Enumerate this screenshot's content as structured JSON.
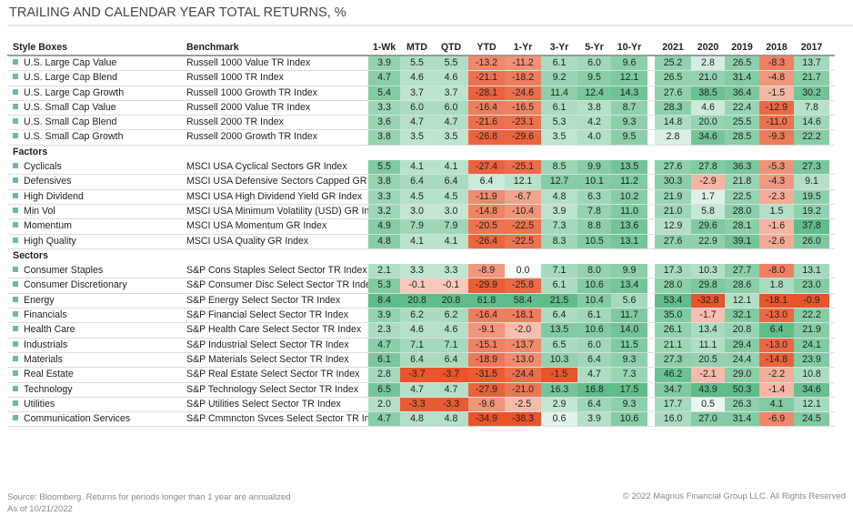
{
  "title": "TRAILING AND CALENDAR YEAR TOTAL RETURNS, %",
  "colors": {
    "positive": "#5fbd8a",
    "negative": "#e9542a",
    "marker": "#6bb8b0"
  },
  "columns": {
    "label": "Style Boxes",
    "benchmark": "Benchmark",
    "periods": [
      "1-Wk",
      "MTD",
      "QTD",
      "YTD",
      "1-Yr",
      "3-Yr",
      "5-Yr",
      "10-Yr",
      "2021",
      "2020",
      "2019",
      "2018",
      "2017"
    ]
  },
  "groups": [
    {
      "heading": "",
      "rows": [
        {
          "name": "U.S. Large Cap Value",
          "benchmark": "Russell 1000 Value TR Index",
          "values": [
            3.9,
            5.5,
            5.5,
            -13.2,
            -11.2,
            6.1,
            6.0,
            9.6,
            25.2,
            2.8,
            26.5,
            -8.3,
            13.7
          ]
        },
        {
          "name": "U.S. Large Cap Blend",
          "benchmark": "Russell 1000 TR Index",
          "values": [
            4.7,
            4.6,
            4.6,
            -21.1,
            -18.2,
            9.2,
            9.5,
            12.1,
            26.5,
            21.0,
            31.4,
            -4.8,
            21.7
          ]
        },
        {
          "name": "U.S. Large Cap Growth",
          "benchmark": "Russell 1000 Growth TR Index",
          "values": [
            5.4,
            3.7,
            3.7,
            -28.1,
            -24.6,
            11.4,
            12.4,
            14.3,
            27.6,
            38.5,
            36.4,
            -1.5,
            30.2
          ]
        },
        {
          "name": "U.S. Small Cap Value",
          "benchmark": "Russell 2000 Value TR Index",
          "values": [
            3.3,
            6.0,
            6.0,
            -16.4,
            -16.5,
            6.1,
            3.8,
            8.7,
            28.3,
            4.6,
            22.4,
            -12.9,
            7.8
          ]
        },
        {
          "name": "U.S. Small Cap Blend",
          "benchmark": "Russell 2000 TR Index",
          "values": [
            3.6,
            4.7,
            4.7,
            -21.6,
            -23.1,
            5.3,
            4.2,
            9.3,
            14.8,
            20.0,
            25.5,
            -11.0,
            14.6
          ]
        },
        {
          "name": "U.S. Small Cap Growth",
          "benchmark": "Russell 2000 Growth TR Index",
          "values": [
            3.8,
            3.5,
            3.5,
            -26.8,
            -29.6,
            3.5,
            4.0,
            9.5,
            2.8,
            34.6,
            28.5,
            -9.3,
            22.2
          ]
        }
      ]
    },
    {
      "heading": "Factors",
      "rows": [
        {
          "name": "Cyclicals",
          "benchmark": "MSCI USA Cyclical Sectors GR Index",
          "values": [
            5.5,
            4.1,
            4.1,
            -27.4,
            -25.1,
            8.5,
            9.9,
            13.5,
            27.6,
            27.8,
            36.3,
            -5.3,
            27.3
          ]
        },
        {
          "name": "Defensives",
          "benchmark": "MSCI USA Defensive Sectors Capped GR Inde",
          "values": [
            3.8,
            6.4,
            6.4,
            6.4,
            12.1,
            12.7,
            10.1,
            11.2,
            30.3,
            -2.9,
            21.8,
            -4.3,
            9.1
          ]
        },
        {
          "name": "High Dividend",
          "benchmark": "MSCI USA High Dividend Yield GR Index",
          "values": [
            3.3,
            4.5,
            4.5,
            -11.9,
            -6.7,
            4.8,
            6.3,
            10.2,
            21.9,
            1.7,
            22.5,
            -2.3,
            19.5
          ]
        },
        {
          "name": "Min Vol",
          "benchmark": "MSCI USA Minimum Volatility (USD) GR Inde",
          "values": [
            3.2,
            3.0,
            3.0,
            -14.8,
            -10.4,
            3.9,
            7.8,
            11.0,
            21.0,
            5.8,
            28.0,
            1.5,
            19.2
          ]
        },
        {
          "name": "Momentum",
          "benchmark": "MSCI USA Momentum GR Index",
          "values": [
            4.9,
            7.9,
            7.9,
            -20.5,
            -22.5,
            7.3,
            8.8,
            13.6,
            12.9,
            29.6,
            28.1,
            -1.6,
            37.8
          ]
        },
        {
          "name": "High Quality",
          "benchmark": "MSCI USA Quality GR Index",
          "values": [
            4.8,
            4.1,
            4.1,
            -26.4,
            -22.5,
            8.3,
            10.5,
            13.1,
            27.6,
            22.9,
            39.1,
            -2.6,
            26.0
          ]
        }
      ]
    },
    {
      "heading": "Sectors",
      "rows": [
        {
          "name": "Consumer Staples",
          "benchmark": "S&P Cons Staples Select Sector TR Index",
          "values": [
            2.1,
            3.3,
            3.3,
            -8.9,
            0.0,
            7.1,
            8.0,
            9.9,
            17.3,
            10.3,
            27.7,
            -8.0,
            13.1
          ]
        },
        {
          "name": "Consumer Discretionary",
          "benchmark": "S&P Consumer Disc Select Sector TR Index",
          "values": [
            5.3,
            -0.1,
            -0.1,
            -29.9,
            -25.8,
            6.1,
            10.6,
            13.4,
            28.0,
            29.8,
            28.6,
            1.8,
            23.0
          ]
        },
        {
          "name": "Energy",
          "benchmark": "S&P Energy Select Sector TR Index",
          "values": [
            8.4,
            20.8,
            20.8,
            61.8,
            58.4,
            21.5,
            10.4,
            5.6,
            53.4,
            -32.8,
            12.1,
            -18.1,
            -0.9
          ]
        },
        {
          "name": "Financials",
          "benchmark": "S&P Financial Select Sector TR Index",
          "values": [
            3.9,
            6.2,
            6.2,
            -16.4,
            -18.1,
            6.4,
            6.1,
            11.7,
            35.0,
            -1.7,
            32.1,
            -13.0,
            22.2
          ]
        },
        {
          "name": "Health Care",
          "benchmark": "S&P Health Care Select Sector TR Index",
          "values": [
            2.3,
            4.6,
            4.6,
            -9.1,
            -2.0,
            13.5,
            10.6,
            14.0,
            26.1,
            13.4,
            20.8,
            6.4,
            21.9
          ]
        },
        {
          "name": "Industrials",
          "benchmark": "S&P Industrial Select Sector TR Index",
          "values": [
            4.7,
            7.1,
            7.1,
            -15.1,
            -13.7,
            6.5,
            6.0,
            11.5,
            21.1,
            11.1,
            29.4,
            -13.0,
            24.1
          ]
        },
        {
          "name": "Materials",
          "benchmark": "S&P Materials Select Sector TR Index",
          "values": [
            6.1,
            6.4,
            6.4,
            -18.9,
            -13.0,
            10.3,
            6.4,
            9.3,
            27.3,
            20.5,
            24.4,
            -14.8,
            23.9
          ]
        },
        {
          "name": "Real Estate",
          "benchmark": "S&P Real Estate Select Sector TR Index",
          "values": [
            2.8,
            -3.7,
            -3.7,
            -31.5,
            -24.4,
            -1.5,
            4.7,
            7.3,
            46.2,
            -2.1,
            29.0,
            -2.2,
            10.8
          ]
        },
        {
          "name": "Technology",
          "benchmark": "S&P Technology Select Sector TR Index",
          "values": [
            6.5,
            4.7,
            4.7,
            -27.9,
            -21.0,
            16.3,
            16.8,
            17.5,
            34.7,
            43.9,
            50.3,
            -1.4,
            34.6
          ]
        },
        {
          "name": "Utilities",
          "benchmark": "S&P Utilities Select Sector TR Index",
          "values": [
            2.0,
            -3.3,
            -3.3,
            -9.6,
            -2.5,
            2.9,
            6.4,
            9.3,
            17.7,
            0.5,
            26.3,
            4.1,
            12.1
          ]
        },
        {
          "name": "Communication Services",
          "benchmark": "S&P Cmmncton Svces Select Sector TR Index",
          "values": [
            4.7,
            4.8,
            4.8,
            -34.9,
            -38.3,
            0.6,
            3.9,
            10.6,
            16.0,
            27.0,
            31.4,
            -6.9,
            24.5
          ]
        }
      ]
    }
  ],
  "footer": {
    "source": "Source: Bloomberg. Returns for periods longer than 1 year are annualized",
    "as_of": "As of 10/21/2022",
    "copyright": "© 2022 Magnus Financial Group LLC. All Rights Reserved"
  }
}
